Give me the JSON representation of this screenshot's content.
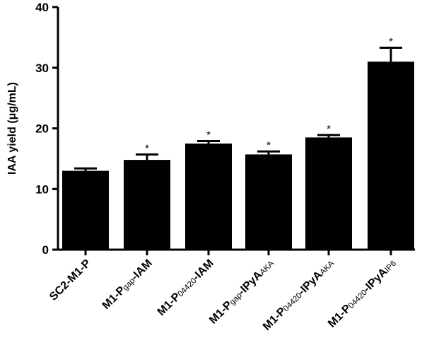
{
  "chart_data": {
    "type": "bar",
    "title": "",
    "ylabel": "IAA yield (μg/mL)",
    "xlabel": "",
    "ylim": [
      0,
      40
    ],
    "yticks": [
      0,
      10,
      20,
      30,
      40
    ],
    "grid": false,
    "legend": "none",
    "bar_color": "#000000",
    "categories": [
      {
        "parts": [
          {
            "t": "SC2-M1-P",
            "sub": false
          }
        ]
      },
      {
        "parts": [
          {
            "t": "M1-P",
            "sub": false
          },
          {
            "t": "gap",
            "sub": true
          },
          {
            "t": "-IAM",
            "sub": false
          }
        ]
      },
      {
        "parts": [
          {
            "t": "M1-P",
            "sub": false
          },
          {
            "t": "04420",
            "sub": true
          },
          {
            "t": "-IAM",
            "sub": false
          }
        ]
      },
      {
        "parts": [
          {
            "t": "M1-P",
            "sub": false
          },
          {
            "t": "gap",
            "sub": true
          },
          {
            "t": "-IPyA",
            "sub": false
          },
          {
            "t": "AKA",
            "sub": true
          }
        ]
      },
      {
        "parts": [
          {
            "t": "M1-P",
            "sub": false
          },
          {
            "t": "04420",
            "sub": true
          },
          {
            "t": "-IPyA",
            "sub": false
          },
          {
            "t": "AKA",
            "sub": true
          }
        ]
      },
      {
        "parts": [
          {
            "t": "M1-P",
            "sub": false
          },
          {
            "t": "04420",
            "sub": true
          },
          {
            "t": "-IPyA",
            "sub": false
          },
          {
            "t": "IP6",
            "sub": true
          }
        ]
      }
    ],
    "values": [
      13.0,
      14.8,
      17.5,
      15.7,
      18.5,
      31.0
    ],
    "errors": [
      0.4,
      0.9,
      0.4,
      0.5,
      0.4,
      2.3
    ],
    "significance_marker": "*",
    "significant": [
      false,
      true,
      true,
      true,
      true,
      true
    ]
  }
}
